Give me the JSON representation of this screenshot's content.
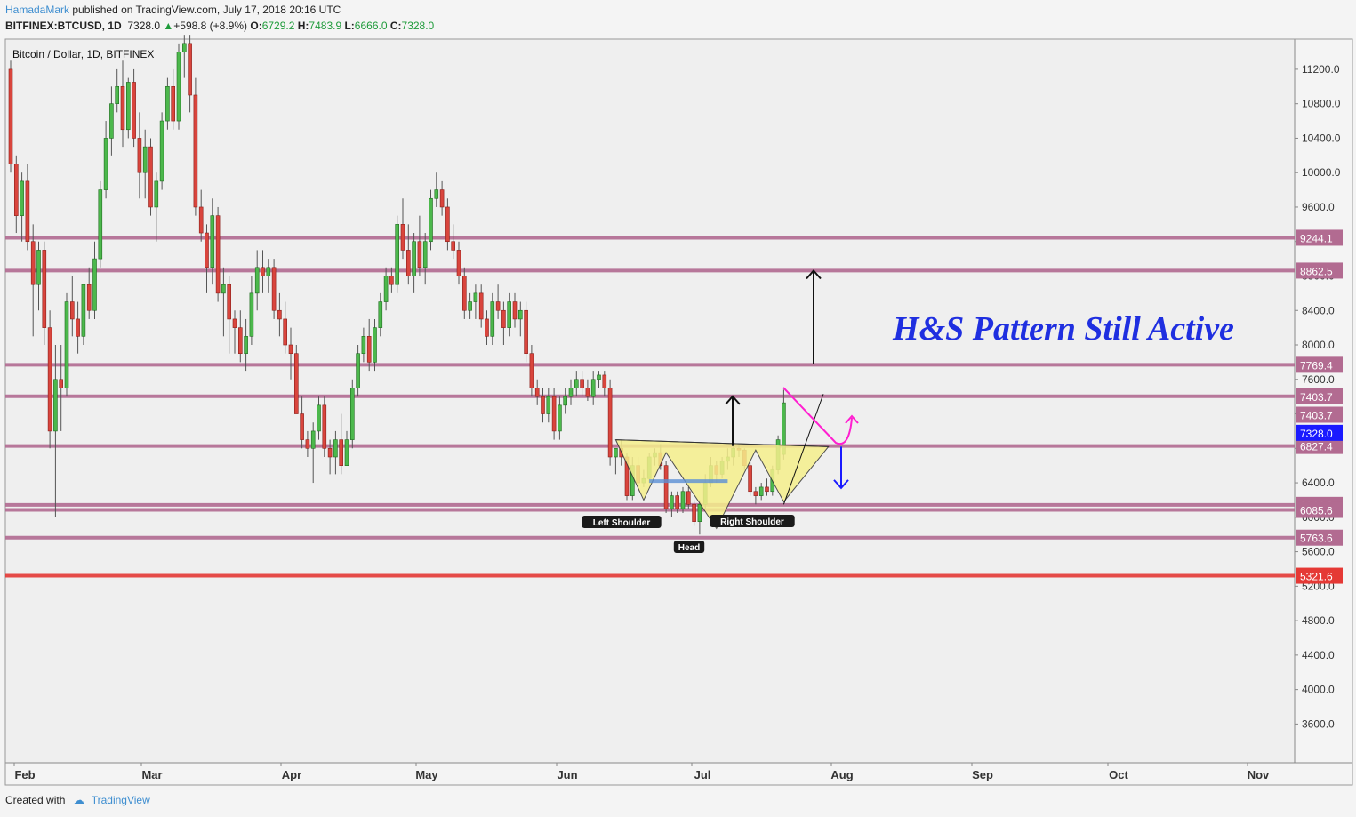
{
  "header": {
    "author": "HamadaMark",
    "published": "published on TradingView.com, July 17, 2018 20:16 UTC",
    "symbol": "BITFINEX:BTCUSD, 1D",
    "last": "7328.0",
    "change": "+598.8 (+8.9%)",
    "o_label": "O:",
    "o": "6729.2",
    "h_label": "H:",
    "h": "7483.9",
    "l_label": "L:",
    "l": "6666.0",
    "c_label": "C:",
    "c": "7328.0"
  },
  "chart_data": {
    "type": "candlestick",
    "title": "Bitcoin / Dollar, 1D, BITFINEX",
    "annotation_text": "H&S Pattern Still Active",
    "xlabels": [
      "Feb",
      "Mar",
      "Apr",
      "May",
      "Jun",
      "Jul",
      "Aug",
      "Sep",
      "Oct",
      "Nov"
    ],
    "y_ticks": [
      11200,
      10800,
      10400,
      10000,
      9600,
      9200,
      8800,
      8400,
      8000,
      7600,
      7200,
      6800,
      6400,
      6000,
      5600,
      5200,
      4800,
      4400,
      4000,
      3600
    ],
    "ylim": [
      3150,
      11550
    ],
    "levels": [
      {
        "value": 9244.1,
        "label": "9244.1",
        "color": "#b26b91"
      },
      {
        "value": 8862.5,
        "label": "8862.5",
        "color": "#b26b91"
      },
      {
        "value": 7769.4,
        "label": "7769.4",
        "color": "#b26b91"
      },
      {
        "value": 7403.7,
        "label": "7403.7",
        "color": "#b26b91"
      },
      {
        "value": 6827.4,
        "label": "6827.4",
        "color": "#b26b91"
      },
      {
        "value": 6144.3,
        "label": "6144.3",
        "color": "#b26b91"
      },
      {
        "value": 6085.6,
        "label": "6085.6",
        "color": "#b26b91"
      },
      {
        "value": 5763.6,
        "label": "5763.6",
        "color": "#b26b91"
      },
      {
        "value": 5321.6,
        "label": "5321.6",
        "color": "#e53935"
      }
    ],
    "extra_labels": [
      {
        "value": 7190,
        "label": "7403.7",
        "color": "#b26b91"
      },
      {
        "value": 6980,
        "label": "7328.0",
        "color": "#1a1aff"
      }
    ],
    "pattern_labels": {
      "left": "Left Shoulder",
      "head": "Head",
      "right": "Right Shoulder"
    },
    "candles": [
      [
        11200,
        11300,
        10000,
        10100
      ],
      [
        10100,
        10200,
        9300,
        9500
      ],
      [
        9500,
        10000,
        9200,
        9900
      ],
      [
        9900,
        10100,
        9100,
        9200
      ],
      [
        9200,
        9400,
        8100,
        8700
      ],
      [
        8700,
        9200,
        8400,
        9100
      ],
      [
        9100,
        9200,
        8000,
        8200
      ],
      [
        8200,
        8400,
        6800,
        7000
      ],
      [
        7000,
        8000,
        6000,
        7600
      ],
      [
        7600,
        8000,
        7000,
        7500
      ],
      [
        7500,
        8600,
        7400,
        8500
      ],
      [
        8500,
        8800,
        8100,
        8300
      ],
      [
        8300,
        8500,
        7900,
        8100
      ],
      [
        8100,
        8700,
        8000,
        8700
      ],
      [
        8700,
        8900,
        8300,
        8400
      ],
      [
        8400,
        9200,
        8300,
        9000
      ],
      [
        9000,
        9900,
        8900,
        9800
      ],
      [
        9800,
        10600,
        9700,
        10400
      ],
      [
        10400,
        11000,
        10200,
        10800
      ],
      [
        10800,
        11200,
        10700,
        11000
      ],
      [
        11000,
        11300,
        10300,
        10500
      ],
      [
        10500,
        11100,
        10400,
        11050
      ],
      [
        11050,
        11200,
        10300,
        10400
      ],
      [
        10400,
        10700,
        9700,
        10000
      ],
      [
        10000,
        10500,
        9700,
        10300
      ],
      [
        10300,
        10400,
        9500,
        9600
      ],
      [
        9600,
        10000,
        9200,
        9900
      ],
      [
        9900,
        10700,
        9800,
        10600
      ],
      [
        10600,
        11100,
        10500,
        11000
      ],
      [
        11000,
        11200,
        10500,
        10600
      ],
      [
        10600,
        11500,
        10500,
        11400
      ],
      [
        11400,
        11600,
        11100,
        11500
      ],
      [
        11500,
        11600,
        10700,
        10900
      ],
      [
        10900,
        11100,
        9500,
        9600
      ],
      [
        9600,
        9800,
        9200,
        9300
      ],
      [
        9300,
        9400,
        8600,
        8900
      ],
      [
        8900,
        9700,
        8700,
        9500
      ],
      [
        9500,
        9600,
        8500,
        8600
      ],
      [
        8600,
        8900,
        8100,
        8700
      ],
      [
        8700,
        8800,
        7900,
        8300
      ],
      [
        8300,
        8400,
        7900,
        8200
      ],
      [
        8200,
        8400,
        7800,
        7900
      ],
      [
        7900,
        8300,
        7700,
        8100
      ],
      [
        8100,
        8800,
        8000,
        8600
      ],
      [
        8600,
        9100,
        8400,
        8900
      ],
      [
        8900,
        9100,
        8600,
        8800
      ],
      [
        8800,
        9000,
        8600,
        8900
      ],
      [
        8900,
        9000,
        8300,
        8400
      ],
      [
        8400,
        8600,
        8100,
        8300
      ],
      [
        8300,
        8500,
        7900,
        8000
      ],
      [
        8000,
        8200,
        7600,
        7900
      ],
      [
        7900,
        8000,
        7200,
        7200
      ],
      [
        7200,
        7400,
        6800,
        6900
      ],
      [
        6900,
        7000,
        6700,
        6800
      ],
      [
        6800,
        7100,
        6400,
        7000
      ],
      [
        7000,
        7400,
        6900,
        7300
      ],
      [
        7300,
        7400,
        6700,
        6800
      ],
      [
        6800,
        6900,
        6500,
        6700
      ],
      [
        6700,
        7000,
        6500,
        6900
      ],
      [
        6900,
        7200,
        6500,
        6600
      ],
      [
        6600,
        7000,
        6600,
        6900
      ],
      [
        6900,
        7600,
        6800,
        7500
      ],
      [
        7500,
        8000,
        7400,
        7900
      ],
      [
        7900,
        8200,
        7800,
        8100
      ],
      [
        8100,
        8300,
        7700,
        7800
      ],
      [
        7800,
        8300,
        7700,
        8200
      ],
      [
        8200,
        8600,
        8100,
        8500
      ],
      [
        8500,
        8900,
        8400,
        8800
      ],
      [
        8800,
        8900,
        8600,
        8700
      ],
      [
        8700,
        9500,
        8600,
        9400
      ],
      [
        9400,
        9700,
        9000,
        9100
      ],
      [
        9100,
        9400,
        8700,
        8800
      ],
      [
        8800,
        9300,
        8600,
        9200
      ],
      [
        9200,
        9500,
        8800,
        8900
      ],
      [
        8900,
        9300,
        8700,
        9200
      ],
      [
        9200,
        9800,
        9100,
        9700
      ],
      [
        9700,
        10000,
        9600,
        9800
      ],
      [
        9800,
        9900,
        9500,
        9600
      ],
      [
        9600,
        9700,
        9100,
        9200
      ],
      [
        9200,
        9400,
        9000,
        9100
      ],
      [
        9100,
        9200,
        8700,
        8800
      ],
      [
        8800,
        8900,
        8300,
        8400
      ],
      [
        8400,
        8600,
        8300,
        8500
      ],
      [
        8500,
        8700,
        8300,
        8600
      ],
      [
        8600,
        8700,
        8200,
        8300
      ],
      [
        8300,
        8400,
        8000,
        8100
      ],
      [
        8100,
        8600,
        8000,
        8500
      ],
      [
        8500,
        8700,
        8300,
        8400
      ],
      [
        8400,
        8500,
        8000,
        8200
      ],
      [
        8200,
        8600,
        8100,
        8500
      ],
      [
        8500,
        8600,
        8200,
        8300
      ],
      [
        8300,
        8500,
        8100,
        8400
      ],
      [
        8400,
        8500,
        7800,
        7900
      ],
      [
        7900,
        8000,
        7400,
        7500
      ],
      [
        7500,
        7600,
        7300,
        7400
      ],
      [
        7400,
        7500,
        7100,
        7200
      ],
      [
        7200,
        7500,
        7100,
        7400
      ],
      [
        7400,
        7500,
        6900,
        7000
      ],
      [
        7000,
        7400,
        6900,
        7300
      ],
      [
        7300,
        7500,
        7200,
        7400
      ],
      [
        7400,
        7600,
        7300,
        7500
      ],
      [
        7500,
        7700,
        7400,
        7600
      ],
      [
        7600,
        7700,
        7400,
        7500
      ],
      [
        7500,
        7600,
        7350,
        7400
      ],
      [
        7400,
        7700,
        7300,
        7600
      ],
      [
        7600,
        7700,
        7500,
        7650
      ],
      [
        7650,
        7700,
        7400,
        7500
      ],
      [
        7500,
        7600,
        6600,
        6700
      ],
      [
        6700,
        6800,
        6500,
        6800
      ],
      [
        6800,
        6900,
        6600,
        6700
      ],
      [
        6700,
        6750,
        6200,
        6250
      ],
      [
        6250,
        6700,
        6200,
        6600
      ],
      [
        6600,
        6700,
        6300,
        6400
      ],
      [
        6400,
        6550,
        6350,
        6450
      ],
      [
        6450,
        6750,
        6400,
        6700
      ],
      [
        6700,
        6800,
        6600,
        6750
      ],
      [
        6750,
        6850,
        6550,
        6600
      ],
      [
        6600,
        6650,
        6050,
        6100
      ],
      [
        6100,
        6300,
        6000,
        6250
      ],
      [
        6250,
        6300,
        6050,
        6100
      ],
      [
        6100,
        6350,
        6050,
        6300
      ],
      [
        6300,
        6350,
        6100,
        6150
      ],
      [
        6150,
        6200,
        5900,
        5950
      ],
      [
        5950,
        6200,
        5800,
        6150
      ],
      [
        6150,
        6500,
        6100,
        6400
      ],
      [
        6400,
        6700,
        6350,
        6600
      ],
      [
        6600,
        6650,
        6400,
        6500
      ],
      [
        6500,
        6700,
        6450,
        6650
      ],
      [
        6650,
        6800,
        6550,
        6700
      ],
      [
        6700,
        6850,
        6600,
        6800
      ],
      [
        6800,
        6850,
        6700,
        6780
      ],
      [
        6780,
        6800,
        6550,
        6600
      ],
      [
        6600,
        6650,
        6250,
        6300
      ],
      [
        6300,
        6350,
        6150,
        6250
      ],
      [
        6250,
        6400,
        6200,
        6350
      ],
      [
        6350,
        6450,
        6250,
        6300
      ],
      [
        6300,
        6600,
        6250,
        6550
      ],
      [
        6550,
        6950,
        6500,
        6900
      ],
      [
        6730,
        7480,
        6670,
        7328
      ]
    ]
  }
}
